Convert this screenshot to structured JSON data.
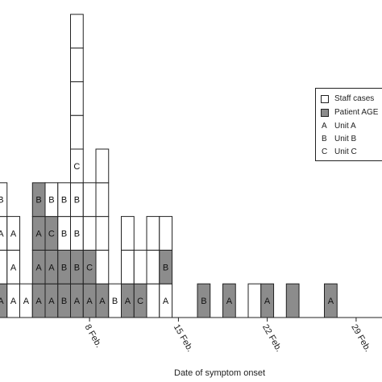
{
  "chart_data": {
    "type": "bar",
    "subtype": "stacked-epidemic-curve",
    "xlabel": "Date of symptom onset",
    "x_unit": "day",
    "x_ticks": [
      "8 Feb.",
      "15 Feb.",
      "22 Feb.",
      "29 Feb."
    ],
    "x_axis_visible_range": [
      "1 Feb.",
      "4 Mar."
    ],
    "grid": false,
    "legend_position": "right",
    "legend": [
      {
        "type": "swatch",
        "label": "Staff cases",
        "color": "#ffffff"
      },
      {
        "type": "swatch",
        "label": "Patient AGE",
        "color": "#8c8c8c"
      },
      {
        "type": "code",
        "code": "A",
        "label": "Unit A"
      },
      {
        "type": "code",
        "code": "B",
        "label": "Unit B"
      },
      {
        "type": "code",
        "code": "C",
        "label": "Unit C"
      }
    ],
    "columns": [
      {
        "date": "1 Feb.",
        "cases": [
          {
            "t": "P",
            "u": "A"
          },
          {
            "t": "S",
            "u": ""
          },
          {
            "t": "S",
            "u": "A"
          },
          {
            "t": "S",
            "u": "B"
          }
        ]
      },
      {
        "date": "2 Feb.",
        "cases": [
          {
            "t": "S",
            "u": "A"
          },
          {
            "t": "S",
            "u": "A"
          },
          {
            "t": "S",
            "u": "A"
          }
        ]
      },
      {
        "date": "3 Feb.",
        "cases": [
          {
            "t": "S",
            "u": "A"
          }
        ]
      },
      {
        "date": "4 Feb.",
        "cases": [
          {
            "t": "P",
            "u": "A"
          },
          {
            "t": "P",
            "u": "A"
          },
          {
            "t": "P",
            "u": "A"
          },
          {
            "t": "P",
            "u": "B"
          }
        ]
      },
      {
        "date": "5 Feb.",
        "cases": [
          {
            "t": "P",
            "u": "A"
          },
          {
            "t": "P",
            "u": "A"
          },
          {
            "t": "P",
            "u": "C"
          },
          {
            "t": "S",
            "u": "B"
          }
        ]
      },
      {
        "date": "6 Feb.",
        "cases": [
          {
            "t": "P",
            "u": "B"
          },
          {
            "t": "P",
            "u": "B"
          },
          {
            "t": "S",
            "u": "B"
          },
          {
            "t": "S",
            "u": "B"
          }
        ]
      },
      {
        "date": "7 Feb.",
        "cases": [
          {
            "t": "P",
            "u": "A"
          },
          {
            "t": "P",
            "u": "B"
          },
          {
            "t": "S",
            "u": "B"
          },
          {
            "t": "S",
            "u": "B"
          },
          {
            "t": "S",
            "u": "C"
          },
          {
            "t": "S",
            "u": ""
          },
          {
            "t": "S",
            "u": ""
          },
          {
            "t": "S",
            "u": ""
          },
          {
            "t": "S",
            "u": ""
          }
        ]
      },
      {
        "date": "8 Feb.",
        "cases": [
          {
            "t": "P",
            "u": "A"
          },
          {
            "t": "P",
            "u": "C"
          },
          {
            "t": "S",
            "u": ""
          },
          {
            "t": "S",
            "u": ""
          }
        ]
      },
      {
        "date": "9 Feb.",
        "cases": [
          {
            "t": "P",
            "u": "A"
          },
          {
            "t": "S",
            "u": ""
          },
          {
            "t": "S",
            "u": ""
          },
          {
            "t": "S",
            "u": ""
          },
          {
            "t": "S",
            "u": ""
          }
        ]
      },
      {
        "date": "10 Feb.",
        "cases": [
          {
            "t": "S",
            "u": "B"
          }
        ]
      },
      {
        "date": "11 Feb.",
        "cases": [
          {
            "t": "P",
            "u": "A"
          },
          {
            "t": "S",
            "u": ""
          },
          {
            "t": "S",
            "u": ""
          }
        ]
      },
      {
        "date": "12 Feb.",
        "cases": [
          {
            "t": "P",
            "u": "C"
          },
          {
            "t": "S",
            "u": ""
          }
        ]
      },
      {
        "date": "13 Feb.",
        "cases": [
          {
            "t": "S",
            "u": ""
          },
          {
            "t": "S",
            "u": ""
          },
          {
            "t": "S",
            "u": ""
          }
        ]
      },
      {
        "date": "14 Feb.",
        "cases": [
          {
            "t": "S",
            "u": "A"
          },
          {
            "t": "P",
            "u": "B"
          },
          {
            "t": "S",
            "u": ""
          }
        ]
      },
      {
        "date": "17 Feb.",
        "cases": [
          {
            "t": "P",
            "u": "B"
          }
        ]
      },
      {
        "date": "19 Feb.",
        "cases": [
          {
            "t": "P",
            "u": "A"
          }
        ]
      },
      {
        "date": "21 Feb.",
        "cases": [
          {
            "t": "S",
            "u": ""
          }
        ]
      },
      {
        "date": "22 Feb.",
        "cases": [
          {
            "t": "P",
            "u": "A"
          }
        ]
      },
      {
        "date": "24 Feb.",
        "cases": [
          {
            "t": "P",
            "u": ""
          }
        ]
      },
      {
        "date": "27 Feb.",
        "cases": [
          {
            "t": "P",
            "u": "A"
          }
        ]
      }
    ]
  }
}
